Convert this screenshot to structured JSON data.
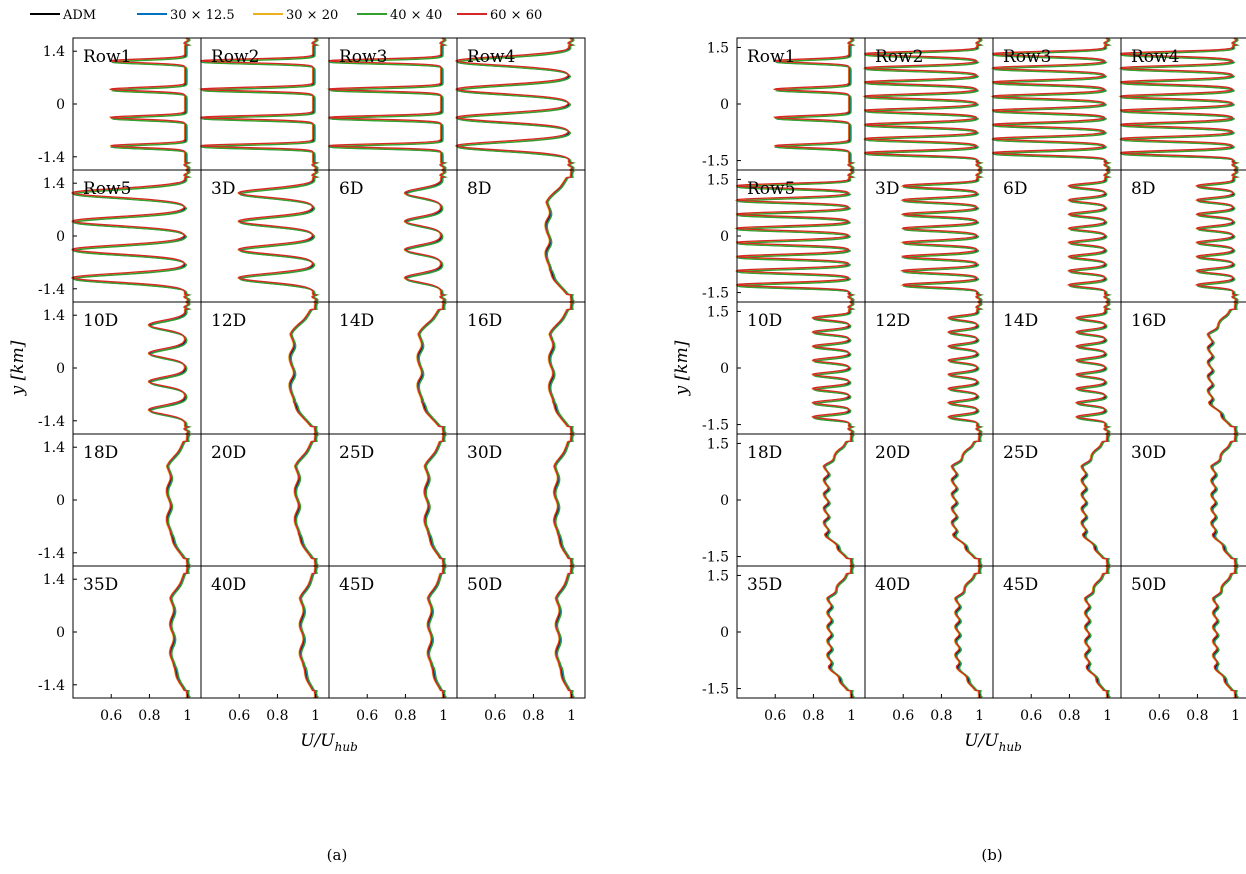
{
  "legend": [
    {
      "name": "ADM",
      "color": "#000000"
    },
    {
      "name": "30 × 12.5",
      "color": "#0072BD"
    },
    {
      "name": "30 × 20",
      "color": "#EDB120"
    },
    {
      "name": "40 × 40",
      "color": "#33A02C"
    },
    {
      "name": "60 × 60",
      "color": "#D62728"
    }
  ],
  "chart_data": [
    {
      "type": "line",
      "caption": "(a)",
      "xlabel": "U/U",
      "xlabel_sub": "hub",
      "ylabel": "y [km]",
      "xlim": [
        0.4,
        1.07
      ],
      "ylim": [
        -1.75,
        1.75
      ],
      "xticks": [
        "0.6",
        "0.8",
        "1"
      ],
      "xtick_values": [
        0.6,
        0.8,
        1.0
      ],
      "yticks": [
        "1.4",
        "0",
        "-1.4"
      ],
      "ytick_values": [
        1.4,
        0,
        -1.4
      ],
      "series": [
        "ADM",
        "30 × 12.5",
        "30 × 20",
        "40 × 40",
        "60 × 60"
      ],
      "panels": [
        {
          "label": "Row1",
          "umin": 0.6,
          "wakes": 4,
          "flat": true
        },
        {
          "label": "Row2",
          "umin": 0.4,
          "wakes": 4,
          "flat": true
        },
        {
          "label": "Row3",
          "umin": 0.4,
          "wakes": 4,
          "flat": true
        },
        {
          "label": "Row4",
          "umin": 0.4,
          "wakes": 4,
          "flat": false
        },
        {
          "label": "Row5",
          "umin": 0.4,
          "wakes": 4,
          "flat": false
        },
        {
          "label": "3D",
          "umin": 0.6,
          "wakes": 4,
          "flat": false
        },
        {
          "label": "6D",
          "umin": 0.8,
          "wakes": 4,
          "flat": false
        },
        {
          "label": "8D",
          "umin": 0.87,
          "wakes": 4,
          "flat": false
        },
        {
          "label": "10D",
          "umin": 0.8,
          "wakes": 4,
          "flat": false
        },
        {
          "label": "12D",
          "umin": 0.87,
          "wakes": 4,
          "flat": false
        },
        {
          "label": "14D",
          "umin": 0.87,
          "wakes": 4,
          "flat": false
        },
        {
          "label": "16D",
          "umin": 0.89,
          "wakes": 4,
          "flat": false
        },
        {
          "label": "18D",
          "umin": 0.9,
          "wakes": 4,
          "flat": false
        },
        {
          "label": "20D",
          "umin": 0.9,
          "wakes": 4,
          "flat": false
        },
        {
          "label": "25D",
          "umin": 0.91,
          "wakes": 4,
          "flat": false
        },
        {
          "label": "30D",
          "umin": 0.92,
          "wakes": 4,
          "flat": false
        },
        {
          "label": "35D",
          "umin": 0.92,
          "wakes": 4,
          "flat": false
        },
        {
          "label": "40D",
          "umin": 0.93,
          "wakes": 4,
          "flat": false
        },
        {
          "label": "45D",
          "umin": 0.93,
          "wakes": 4,
          "flat": false
        },
        {
          "label": "50D",
          "umin": 0.93,
          "wakes": 4,
          "flat": false
        }
      ]
    },
    {
      "type": "line",
      "caption": "(b)",
      "xlabel": "U/U",
      "xlabel_sub": "hub",
      "ylabel": "y [km]",
      "xlim": [
        0.4,
        1.07
      ],
      "ylim": [
        -1.75,
        1.75
      ],
      "xticks": [
        "0.6",
        "0.8",
        "1"
      ],
      "xtick_values": [
        0.6,
        0.8,
        1.0
      ],
      "yticks": [
        "1.5",
        "0",
        "-1.5"
      ],
      "ytick_values": [
        1.5,
        0,
        -1.5
      ],
      "series": [
        "ADM",
        "30 × 12.5",
        "30 × 20",
        "40 × 40",
        "60 × 60"
      ],
      "panels": [
        {
          "label": "Row1",
          "umin": 0.6,
          "wakes": 4,
          "flat": true
        },
        {
          "label": "Row2",
          "umin": 0.4,
          "wakes": 8,
          "flat": false
        },
        {
          "label": "Row3",
          "umin": 0.4,
          "wakes": 8,
          "flat": false
        },
        {
          "label": "Row4",
          "umin": 0.4,
          "wakes": 8,
          "flat": false
        },
        {
          "label": "Row5",
          "umin": 0.4,
          "wakes": 8,
          "flat": false
        },
        {
          "label": "3D",
          "umin": 0.6,
          "wakes": 8,
          "flat": false
        },
        {
          "label": "6D",
          "umin": 0.8,
          "wakes": 8,
          "flat": false
        },
        {
          "label": "8D",
          "umin": 0.8,
          "wakes": 8,
          "flat": false
        },
        {
          "label": "10D",
          "umin": 0.8,
          "wakes": 8,
          "flat": false
        },
        {
          "label": "12D",
          "umin": 0.84,
          "wakes": 8,
          "flat": false
        },
        {
          "label": "14D",
          "umin": 0.84,
          "wakes": 8,
          "flat": false
        },
        {
          "label": "16D",
          "umin": 0.86,
          "wakes": 8,
          "flat": false
        },
        {
          "label": "18D",
          "umin": 0.86,
          "wakes": 8,
          "flat": false
        },
        {
          "label": "20D",
          "umin": 0.86,
          "wakes": 8,
          "flat": false
        },
        {
          "label": "25D",
          "umin": 0.87,
          "wakes": 8,
          "flat": false
        },
        {
          "label": "30D",
          "umin": 0.88,
          "wakes": 8,
          "flat": false
        },
        {
          "label": "35D",
          "umin": 0.88,
          "wakes": 8,
          "flat": false
        },
        {
          "label": "40D",
          "umin": 0.88,
          "wakes": 8,
          "flat": false
        },
        {
          "label": "45D",
          "umin": 0.89,
          "wakes": 8,
          "flat": false
        },
        {
          "label": "50D",
          "umin": 0.89,
          "wakes": 8,
          "flat": false
        }
      ]
    }
  ]
}
